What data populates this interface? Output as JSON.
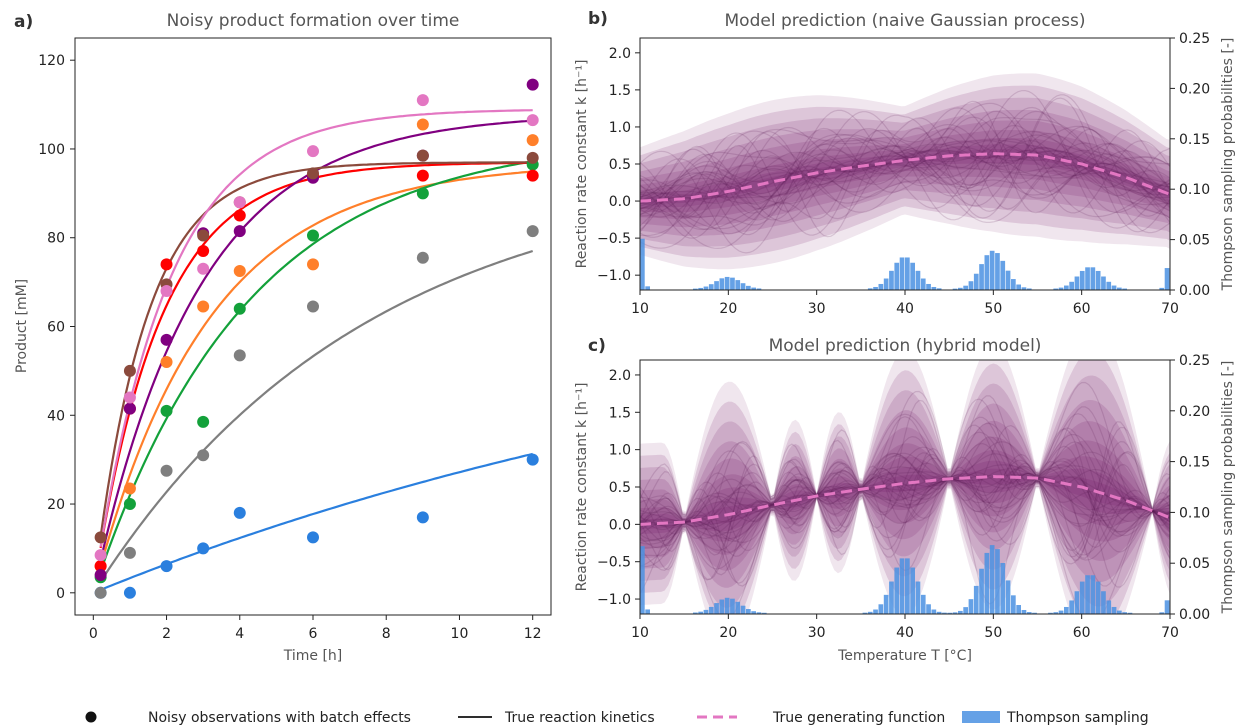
{
  "chart_data": [
    {
      "panel": "a)",
      "type": "scatter",
      "title": "Noisy product formation over time",
      "xlabel": "Time [h]",
      "ylabel": "Product [mM]",
      "xlim": [
        -0.5,
        12.5
      ],
      "ylim": [
        -5,
        125
      ],
      "xticks": [
        0,
        2,
        4,
        6,
        8,
        10,
        12
      ],
      "yticks": [
        0,
        20,
        40,
        60,
        80,
        100,
        120
      ],
      "x": [
        0.2,
        1,
        2,
        3,
        4,
        6,
        9,
        12
      ],
      "series": [
        {
          "color": "#2a7fde",
          "obs": [
            0,
            0,
            6,
            10,
            18,
            12.5,
            17,
            30
          ],
          "fit": {
            "A": 75,
            "k": 0.045
          }
        },
        {
          "color": "#ff7f2a",
          "obs": [
            6,
            23.5,
            52,
            64.5,
            72.5,
            74,
            105.5,
            102
          ],
          "fit": {
            "A": 97,
            "k": 0.32
          }
        },
        {
          "color": "#13a13a",
          "obs": [
            3.5,
            20,
            41,
            38.5,
            64,
            80.5,
            90,
            96.5
          ],
          "fit": {
            "A": 103,
            "k": 0.24
          }
        },
        {
          "color": "#ff0000",
          "obs": [
            6,
            41.5,
            74,
            77,
            85,
            94,
            94,
            94
          ],
          "fit": {
            "A": 97,
            "k": 0.55
          }
        },
        {
          "color": "#800080",
          "obs": [
            4,
            41.5,
            57,
            81,
            81.5,
            93.5,
            98.5,
            114.5
          ],
          "fit": {
            "A": 108,
            "k": 0.35
          }
        },
        {
          "color": "#8b4a3c",
          "obs": [
            12.5,
            50,
            69.5,
            80.5,
            88,
            94.5,
            98.5,
            98
          ],
          "fit": {
            "A": 97,
            "k": 0.7
          }
        },
        {
          "color": "#e377c2",
          "obs": [
            8.5,
            44,
            68,
            73,
            88,
            99.5,
            111,
            106.5
          ],
          "fit": {
            "A": 109,
            "k": 0.5
          }
        },
        {
          "color": "#7f7f7f",
          "obs": [
            0,
            9,
            27.5,
            31,
            53.5,
            64.5,
            75.5,
            81.5
          ],
          "fit": {
            "A": 96,
            "k": 0.135
          }
        }
      ]
    },
    {
      "panel": "b)",
      "type": "line",
      "title": "Model prediction (naive Gaussian process)",
      "xlabel": "",
      "ylabel": "Reaction rate constant k [h⁻¹]",
      "ylabel2": "Thompson sampling probabilities [-]",
      "xlim": [
        10,
        70
      ],
      "ylim": [
        -1.2,
        2.2
      ],
      "y2lim": [
        0,
        0.25
      ],
      "xticks": [
        10,
        20,
        30,
        40,
        50,
        60,
        70
      ],
      "yticks": [
        -1.0,
        -0.5,
        0.0,
        0.5,
        1.0,
        1.5,
        2.0
      ],
      "y2ticks": [
        0.0,
        0.05,
        0.1,
        0.15,
        0.2,
        0.25
      ],
      "true_function": {
        "x": [
          10,
          15,
          20,
          25,
          30,
          35,
          40,
          45,
          50,
          55,
          60,
          65,
          70
        ],
        "y": [
          0.0,
          0.03,
          0.13,
          0.26,
          0.38,
          0.47,
          0.55,
          0.61,
          0.64,
          0.62,
          0.5,
          0.32,
          0.09
        ]
      },
      "thompson_peaks": [
        {
          "x": 10,
          "p": 0.072
        },
        {
          "x": 20,
          "p": 0.012
        },
        {
          "x": 40,
          "p": 0.032
        },
        {
          "x": 50,
          "p": 0.038
        },
        {
          "x": 61,
          "p": 0.022
        },
        {
          "x": 70,
          "p": 0.03
        }
      ]
    },
    {
      "panel": "c)",
      "type": "line",
      "title": "Model prediction (hybrid model)",
      "xlabel": "Temperature T [°C]",
      "ylabel": "Reaction rate constant k [h⁻¹]",
      "ylabel2": "Thompson sampling probabilities [-]",
      "xlim": [
        10,
        70
      ],
      "ylim": [
        -1.2,
        2.2
      ],
      "y2lim": [
        0,
        0.25
      ],
      "xticks": [
        10,
        20,
        30,
        40,
        50,
        60,
        70
      ],
      "yticks": [
        -1.0,
        -0.5,
        0.0,
        0.5,
        1.0,
        1.5,
        2.0
      ],
      "y2ticks": [
        0.0,
        0.05,
        0.1,
        0.15,
        0.2,
        0.25
      ],
      "true_function": {
        "x": [
          10,
          15,
          20,
          25,
          30,
          35,
          40,
          45,
          50,
          55,
          60,
          65,
          70
        ],
        "y": [
          0.0,
          0.03,
          0.13,
          0.26,
          0.38,
          0.47,
          0.55,
          0.61,
          0.64,
          0.62,
          0.5,
          0.32,
          0.09
        ]
      },
      "knots": [
        15,
        25,
        30,
        35,
        45,
        55,
        68
      ],
      "thompson_peaks": [
        {
          "x": 10,
          "p": 0.095
        },
        {
          "x": 20,
          "p": 0.015
        },
        {
          "x": 40,
          "p": 0.055
        },
        {
          "x": 50,
          "p": 0.067
        },
        {
          "x": 61,
          "p": 0.038
        },
        {
          "x": 70,
          "p": 0.018
        }
      ]
    }
  ],
  "legend": {
    "items": [
      {
        "label": "Noisy observations with batch effects"
      },
      {
        "label": "True reaction kinetics"
      },
      {
        "label": "True generating function"
      },
      {
        "label": "Thompson sampling"
      }
    ]
  },
  "colors": {
    "true_function": "#e377c2",
    "band": "#6b0a5a",
    "histogram": "#4a90e2"
  }
}
